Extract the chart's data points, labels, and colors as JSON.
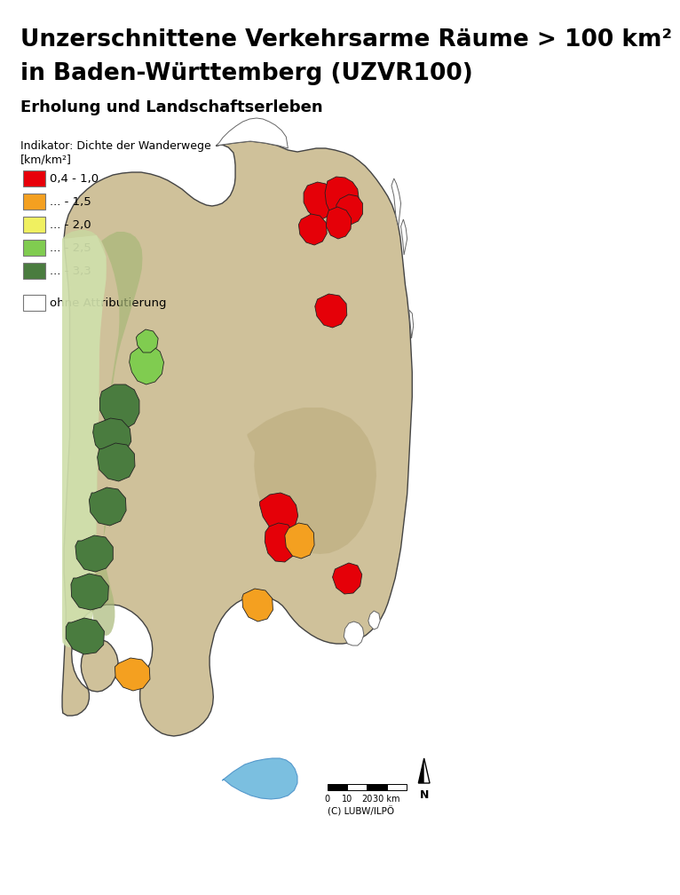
{
  "title_line1": "Unzerschnittene Verkehrsarme Räume > 100 km²",
  "title_line2": "in Baden-Württemberg (UZVR100)",
  "subtitle": "Erholung und Landschaftserleben",
  "indicator_label": "Indikator: Dichte der Wanderwege",
  "unit_label": "[km/km²]",
  "legend_items": [
    {
      "label": "0,4 - 1,0",
      "color": "#e8000a"
    },
    {
      "label": "... - 1,5",
      "color": "#f4a020"
    },
    {
      "label": "... - 2,0",
      "color": "#f0f060"
    },
    {
      "label": "... - 2,5",
      "color": "#80cc50"
    },
    {
      "label": "... - 3,3",
      "color": "#4a7c3f"
    }
  ],
  "legend_no_attr": {
    "label": "ohne Attributierung",
    "color": "#ffffff"
  },
  "copyright": "(C) LUBW/ILPÖ",
  "background_color": "#ffffff",
  "title_fontsize": 19,
  "subtitle_fontsize": 13,
  "indicator_fontsize": 9,
  "legend_fontsize": 9.5
}
